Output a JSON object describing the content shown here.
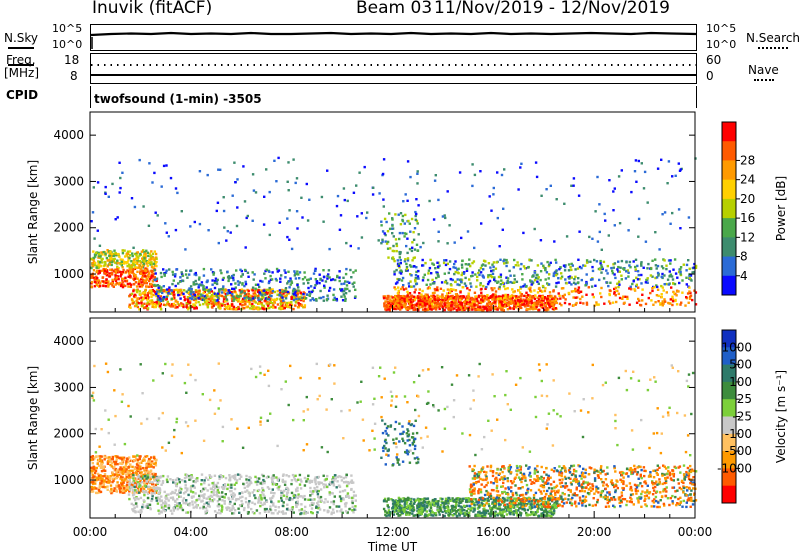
{
  "header": {
    "station": "Inuvik (fitACF)",
    "beam": "Beam 03",
    "dates": "11/Nov/2019 - 12/Nov/2019"
  },
  "summary_panels": {
    "nsky_label": "N.Sky",
    "nsky_top": "10^5",
    "nsky_bottom": "10^0",
    "nsearch_label": "N.Search",
    "nsearch_top": "10^5",
    "nsearch_bottom": "10^0",
    "freq_label_1": "Freq.",
    "freq_label_2": "[MHz]",
    "freq_top": "18",
    "freq_bottom": "8",
    "nave_label": "Nave",
    "nave_top": "60",
    "nave_bottom": "0",
    "cpid_label": "CPID",
    "cpid_value": "twofsound (1-min) -3505"
  },
  "colors": {
    "power_scale": [
      "#0a0aff",
      "#2b6bd6",
      "#3d8c6e",
      "#4aa84a",
      "#b7d000",
      "#ffd000",
      "#ff9a00",
      "#ff5a00",
      "#ff0000"
    ],
    "velocity_scale": [
      "#ff0000",
      "#ff5a00",
      "#ff9a00",
      "#ffc060",
      "#c8c8c8",
      "#7ccf3a",
      "#3d8c3d",
      "#2e7a6a",
      "#1f5fc8",
      "#1030c0"
    ]
  },
  "chart_data": [
    {
      "type": "heatmap",
      "name": "power",
      "ylabel": "Slant Range [km]",
      "yticks": [
        1000,
        2000,
        3000,
        4000
      ],
      "ylim": [
        180,
        4500
      ],
      "xlim": [
        0,
        24
      ],
      "xticks": [],
      "colorbar_label": "Power [dB]",
      "colorbar_ticks": [
        "4",
        "8",
        "12",
        "16",
        "20",
        "24",
        "28"
      ],
      "grid": false
    },
    {
      "type": "heatmap",
      "name": "velocity",
      "ylabel": "Slant Range [km]",
      "yticks": [
        1000,
        2000,
        3000,
        4000
      ],
      "ylim": [
        180,
        4500
      ],
      "xlim": [
        0,
        24
      ],
      "xlabel": "Time UT",
      "xticks": [
        "00:00",
        "04:00",
        "08:00",
        "12:00",
        "16:00",
        "20:00",
        "00:00"
      ],
      "colorbar_label": "Velocity [m s⁻¹]",
      "colorbar_ticks": [
        "1000",
        "500",
        "100",
        "25",
        "-25",
        "-100",
        "-500",
        "-1000"
      ],
      "grid": false
    }
  ]
}
